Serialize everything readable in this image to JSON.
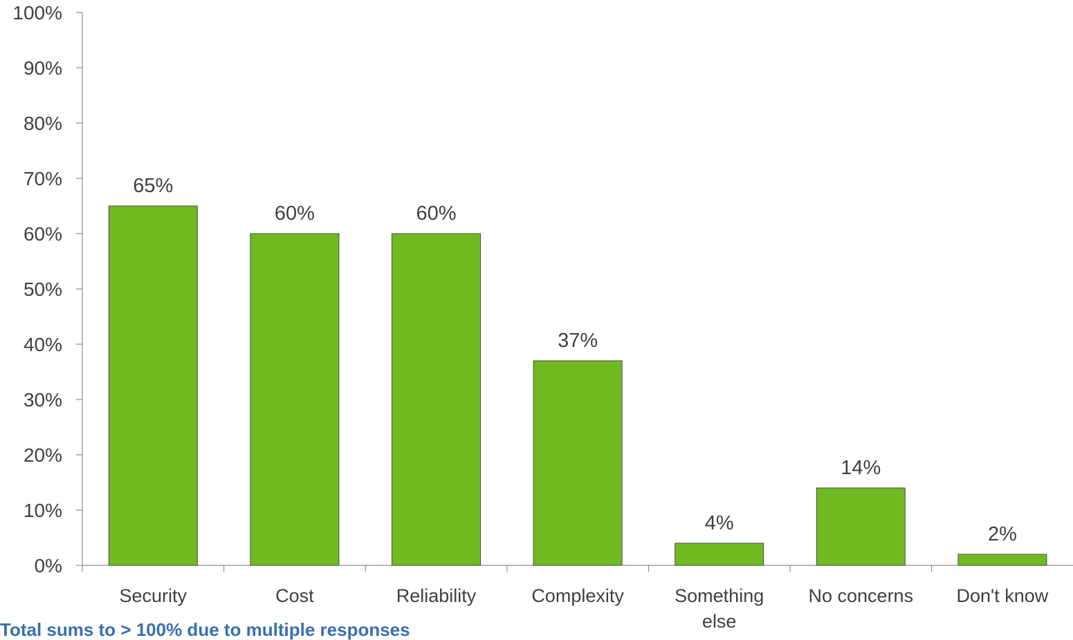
{
  "chart_data": {
    "type": "bar",
    "categories": [
      "Security",
      "Cost",
      "Reliability",
      "Complexity",
      "Something else",
      "No concerns",
      "Don't know"
    ],
    "category_lines": [
      [
        "Security"
      ],
      [
        "Cost"
      ],
      [
        "Reliability"
      ],
      [
        "Complexity"
      ],
      [
        "Something",
        "else"
      ],
      [
        "No concerns"
      ],
      [
        "Don't know"
      ]
    ],
    "values": [
      65,
      60,
      60,
      37,
      4,
      14,
      2
    ],
    "data_labels": [
      "65%",
      "60%",
      "60%",
      "37%",
      "4%",
      "14%",
      "2%"
    ],
    "y_ticks": [
      "0%",
      "10%",
      "20%",
      "30%",
      "40%",
      "50%",
      "60%",
      "70%",
      "80%",
      "90%",
      "100%"
    ],
    "ylim": [
      0,
      100
    ],
    "grid": false,
    "legend": "none",
    "bar_color": "#70b920",
    "bar_edge_color": "#4a4a4a",
    "text_color": "#404040",
    "axis_color": "#8c8c8c"
  },
  "footnote": "Total sums to > 100% due to multiple responses"
}
